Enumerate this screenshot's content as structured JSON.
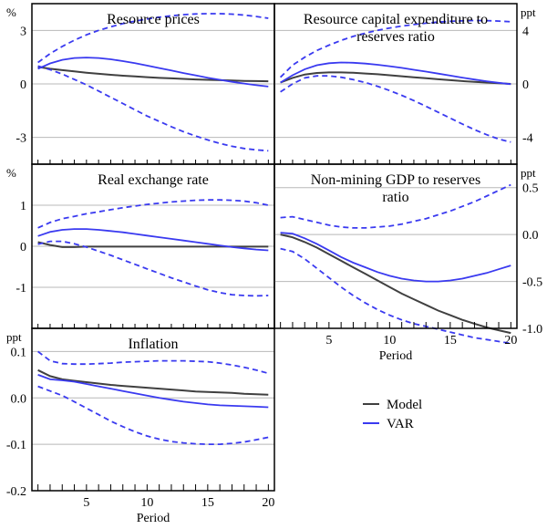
{
  "colors": {
    "model": "#404040",
    "var": "#3a3af0",
    "grid": "#b8b8b8"
  },
  "legend": {
    "model": "Model",
    "var": "VAR"
  },
  "chart_data": [
    {
      "type": "line",
      "title": "Resource prices",
      "unit_left": "%",
      "unit_right": "",
      "ylim": [
        -4.5,
        4.5
      ],
      "yticks": [
        3,
        0,
        -3
      ],
      "ytick_labels": [
        "3",
        "0",
        "-3"
      ],
      "xlim": [
        0.5,
        20.5
      ],
      "xlabel": "",
      "x": [
        1,
        2,
        3,
        4,
        5,
        6,
        7,
        8,
        9,
        10,
        11,
        12,
        13,
        14,
        15,
        16,
        17,
        18,
        19,
        20
      ],
      "series": [
        {
          "name": "Model",
          "style": "solid",
          "values": [
            0.95,
            0.85,
            0.77,
            0.7,
            0.63,
            0.57,
            0.51,
            0.46,
            0.42,
            0.38,
            0.34,
            0.31,
            0.28,
            0.25,
            0.23,
            0.21,
            0.19,
            0.17,
            0.16,
            0.15
          ]
        },
        {
          "name": "VAR",
          "style": "solid",
          "values": [
            0.85,
            1.15,
            1.35,
            1.45,
            1.48,
            1.45,
            1.38,
            1.28,
            1.16,
            1.03,
            0.89,
            0.75,
            0.61,
            0.48,
            0.35,
            0.23,
            0.12,
            0.02,
            -0.07,
            -0.15
          ]
        },
        {
          "name": "VAR upper band",
          "style": "dashed",
          "values": [
            1.2,
            1.7,
            2.1,
            2.45,
            2.75,
            3.0,
            3.2,
            3.38,
            3.52,
            3.64,
            3.74,
            3.82,
            3.88,
            3.92,
            3.94,
            3.94,
            3.91,
            3.86,
            3.78,
            3.68
          ]
        },
        {
          "name": "VAR lower band",
          "style": "dashed",
          "values": [
            1.0,
            0.8,
            0.55,
            0.25,
            -0.05,
            -0.4,
            -0.75,
            -1.1,
            -1.45,
            -1.8,
            -2.1,
            -2.4,
            -2.68,
            -2.92,
            -3.14,
            -3.34,
            -3.5,
            -3.62,
            -3.7,
            -3.75
          ]
        }
      ]
    },
    {
      "type": "line",
      "title": "Resource capital expenditure to reserves ratio",
      "title_lines": [
        "Resource capital expenditure to",
        "reserves ratio"
      ],
      "unit_left": "",
      "unit_right": "ppt",
      "ylim": [
        -6,
        6
      ],
      "yticks": [
        4,
        0,
        -4
      ],
      "ytick_labels": [
        "4",
        "0",
        "-4"
      ],
      "xlim": [
        0.5,
        20.5
      ],
      "xlabel": "",
      "x": [
        1,
        2,
        3,
        4,
        5,
        6,
        7,
        8,
        9,
        10,
        11,
        12,
        13,
        14,
        15,
        16,
        17,
        18,
        19,
        20
      ],
      "series": [
        {
          "name": "Model",
          "style": "solid",
          "values": [
            0.1,
            0.45,
            0.7,
            0.82,
            0.86,
            0.86,
            0.83,
            0.78,
            0.72,
            0.65,
            0.57,
            0.5,
            0.42,
            0.35,
            0.28,
            0.21,
            0.15,
            0.1,
            0.05,
            0.0
          ]
        },
        {
          "name": "VAR",
          "style": "solid",
          "values": [
            0.1,
            0.65,
            1.1,
            1.4,
            1.55,
            1.6,
            1.58,
            1.52,
            1.43,
            1.32,
            1.2,
            1.06,
            0.92,
            0.77,
            0.62,
            0.47,
            0.33,
            0.2,
            0.08,
            -0.02
          ]
        },
        {
          "name": "VAR upper band",
          "style": "dashed",
          "values": [
            0.5,
            1.4,
            2.0,
            2.5,
            2.9,
            3.25,
            3.55,
            3.8,
            4.0,
            4.18,
            4.32,
            4.44,
            4.54,
            4.62,
            4.68,
            4.72,
            4.74,
            4.73,
            4.7,
            4.65
          ]
        },
        {
          "name": "VAR lower band",
          "style": "dashed",
          "values": [
            -0.6,
            0.0,
            0.45,
            0.6,
            0.6,
            0.5,
            0.32,
            0.1,
            -0.18,
            -0.5,
            -0.85,
            -1.25,
            -1.68,
            -2.12,
            -2.56,
            -3.0,
            -3.42,
            -3.8,
            -4.12,
            -4.35
          ]
        }
      ]
    },
    {
      "type": "line",
      "title": "Real exchange rate",
      "unit_left": "%",
      "unit_right": "",
      "ylim": [
        -2,
        2
      ],
      "yticks": [
        1,
        0,
        -1
      ],
      "ytick_labels": [
        "1",
        "0",
        "-1"
      ],
      "xlim": [
        0.5,
        20.5
      ],
      "xlabel": "",
      "x": [
        1,
        2,
        3,
        4,
        5,
        6,
        7,
        8,
        9,
        10,
        11,
        12,
        13,
        14,
        15,
        16,
        17,
        18,
        19,
        20
      ],
      "series": [
        {
          "name": "Model",
          "style": "solid",
          "values": [
            0.1,
            0.03,
            -0.02,
            -0.02,
            -0.01,
            -0.01,
            -0.01,
            -0.01,
            -0.01,
            -0.01,
            -0.01,
            -0.01,
            -0.01,
            -0.01,
            -0.01,
            -0.01,
            -0.01,
            -0.01,
            -0.01,
            -0.01
          ]
        },
        {
          "name": "VAR",
          "style": "solid",
          "values": [
            0.25,
            0.35,
            0.4,
            0.42,
            0.42,
            0.4,
            0.37,
            0.34,
            0.3,
            0.26,
            0.22,
            0.18,
            0.14,
            0.1,
            0.06,
            0.02,
            -0.02,
            -0.05,
            -0.08,
            -0.1
          ]
        },
        {
          "name": "VAR upper band",
          "style": "dashed",
          "values": [
            0.45,
            0.58,
            0.67,
            0.73,
            0.79,
            0.84,
            0.89,
            0.94,
            0.98,
            1.02,
            1.05,
            1.08,
            1.1,
            1.12,
            1.13,
            1.13,
            1.12,
            1.1,
            1.06,
            1.0
          ]
        },
        {
          "name": "VAR lower band",
          "style": "dashed",
          "values": [
            0.05,
            0.12,
            0.12,
            0.06,
            -0.02,
            -0.12,
            -0.22,
            -0.33,
            -0.44,
            -0.55,
            -0.66,
            -0.77,
            -0.87,
            -0.97,
            -1.06,
            -1.13,
            -1.18,
            -1.2,
            -1.21,
            -1.2
          ]
        }
      ]
    },
    {
      "type": "line",
      "title": "Non-mining GDP to reserves ratio",
      "title_lines": [
        "Non-mining GDP to reserves",
        "ratio"
      ],
      "unit_left": "",
      "unit_right": "ppt",
      "ylim": [
        -1.0,
        0.75
      ],
      "yticks": [
        0.5,
        0.0,
        -0.5,
        -1.0
      ],
      "ytick_labels": [
        "0.5",
        "0.0",
        "-0.5",
        "-1.0"
      ],
      "xlim": [
        0.5,
        20.5
      ],
      "xticks": [
        5,
        10,
        15,
        20
      ],
      "xlabel": "Period",
      "x": [
        1,
        2,
        3,
        4,
        5,
        6,
        7,
        8,
        9,
        10,
        11,
        12,
        13,
        14,
        15,
        16,
        17,
        18,
        19,
        20
      ],
      "series": [
        {
          "name": "Model",
          "style": "solid",
          "values": [
            0.0,
            -0.03,
            -0.08,
            -0.14,
            -0.21,
            -0.28,
            -0.35,
            -0.42,
            -0.49,
            -0.56,
            -0.63,
            -0.69,
            -0.75,
            -0.81,
            -0.86,
            -0.91,
            -0.95,
            -0.99,
            -1.02,
            -1.05
          ]
        },
        {
          "name": "VAR",
          "style": "solid",
          "values": [
            0.02,
            0.01,
            -0.04,
            -0.1,
            -0.17,
            -0.24,
            -0.3,
            -0.35,
            -0.4,
            -0.44,
            -0.47,
            -0.49,
            -0.5,
            -0.5,
            -0.49,
            -0.47,
            -0.44,
            -0.41,
            -0.37,
            -0.33
          ]
        },
        {
          "name": "VAR upper band",
          "style": "dashed",
          "values": [
            0.18,
            0.19,
            0.16,
            0.13,
            0.1,
            0.08,
            0.07,
            0.07,
            0.08,
            0.09,
            0.11,
            0.14,
            0.17,
            0.21,
            0.25,
            0.3,
            0.35,
            0.41,
            0.47,
            0.53
          ]
        },
        {
          "name": "VAR lower band",
          "style": "dashed",
          "values": [
            -0.15,
            -0.18,
            -0.26,
            -0.36,
            -0.46,
            -0.56,
            -0.65,
            -0.73,
            -0.8,
            -0.86,
            -0.91,
            -0.95,
            -0.98,
            -1.01,
            -1.04,
            -1.07,
            -1.1,
            -1.12,
            -1.14,
            -1.16
          ]
        }
      ]
    },
    {
      "type": "line",
      "title": "Inflation",
      "unit_left": "ppt",
      "unit_right": "",
      "ylim": [
        -0.2,
        0.15
      ],
      "yticks": [
        0.1,
        0.0,
        -0.1,
        -0.2
      ],
      "ytick_labels": [
        "0.1",
        "0.0",
        "-0.1",
        "-0.2"
      ],
      "xlim": [
        0.5,
        20.5
      ],
      "xticks": [
        5,
        10,
        15,
        20
      ],
      "xlabel": "Period",
      "x": [
        1,
        2,
        3,
        4,
        5,
        6,
        7,
        8,
        9,
        10,
        11,
        12,
        13,
        14,
        15,
        16,
        17,
        18,
        19,
        20
      ],
      "series": [
        {
          "name": "Model",
          "style": "solid",
          "values": [
            0.06,
            0.047,
            0.04,
            0.037,
            0.034,
            0.031,
            0.028,
            0.026,
            0.024,
            0.022,
            0.02,
            0.018,
            0.016,
            0.014,
            0.013,
            0.012,
            0.011,
            0.009,
            0.008,
            0.007
          ]
        },
        {
          "name": "VAR",
          "style": "solid",
          "values": [
            0.05,
            0.04,
            0.038,
            0.035,
            0.03,
            0.025,
            0.02,
            0.015,
            0.01,
            0.005,
            0.0,
            -0.004,
            -0.008,
            -0.011,
            -0.014,
            -0.016,
            -0.017,
            -0.018,
            -0.019,
            -0.02
          ]
        },
        {
          "name": "VAR upper band",
          "style": "dashed",
          "values": [
            0.1,
            0.08,
            0.074,
            0.073,
            0.073,
            0.074,
            0.075,
            0.077,
            0.078,
            0.079,
            0.08,
            0.08,
            0.08,
            0.079,
            0.078,
            0.075,
            0.071,
            0.066,
            0.06,
            0.053
          ]
        },
        {
          "name": "VAR lower band",
          "style": "dashed",
          "values": [
            0.025,
            0.015,
            0.005,
            -0.008,
            -0.022,
            -0.036,
            -0.05,
            -0.062,
            -0.073,
            -0.082,
            -0.089,
            -0.094,
            -0.097,
            -0.099,
            -0.1,
            -0.1,
            -0.098,
            -0.095,
            -0.09,
            -0.085
          ]
        }
      ]
    }
  ]
}
